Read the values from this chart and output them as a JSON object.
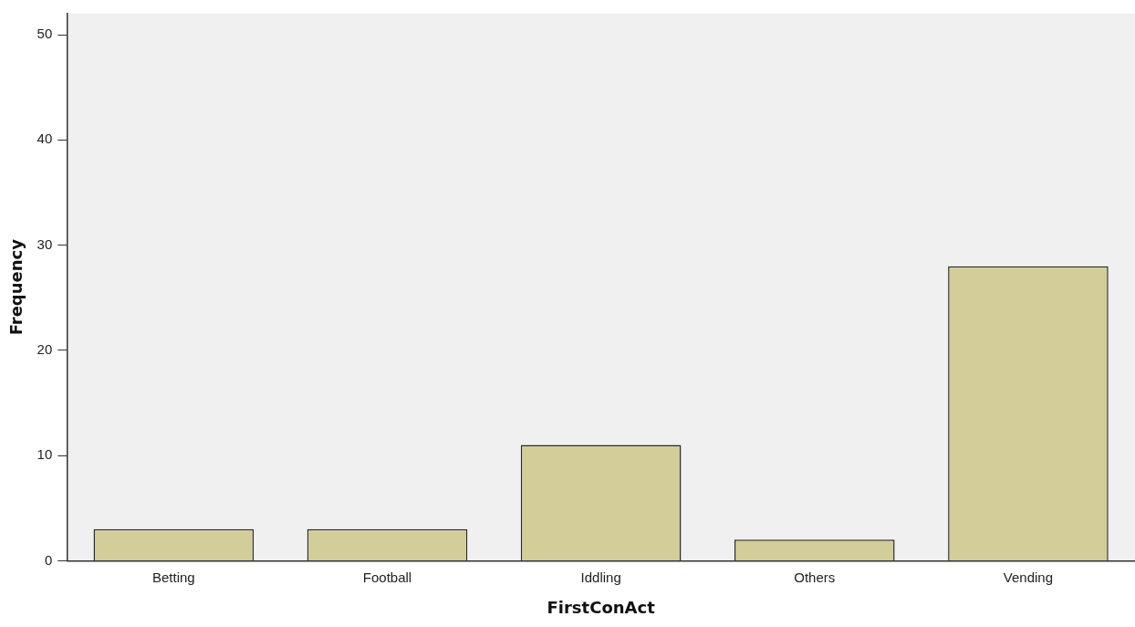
{
  "chart_data": {
    "type": "bar",
    "xlabel": "FirstConAct",
    "ylabel": "Frequency",
    "categories": [
      "Betting",
      "Football",
      "Iddling",
      "Others",
      "Vending"
    ],
    "values": [
      3,
      3,
      11,
      2,
      28
    ],
    "color": "#d3ce99",
    "ylim": [
      0,
      52
    ],
    "yticks": [
      0,
      10,
      20,
      30,
      40,
      50
    ],
    "grid": false,
    "legend": false
  }
}
